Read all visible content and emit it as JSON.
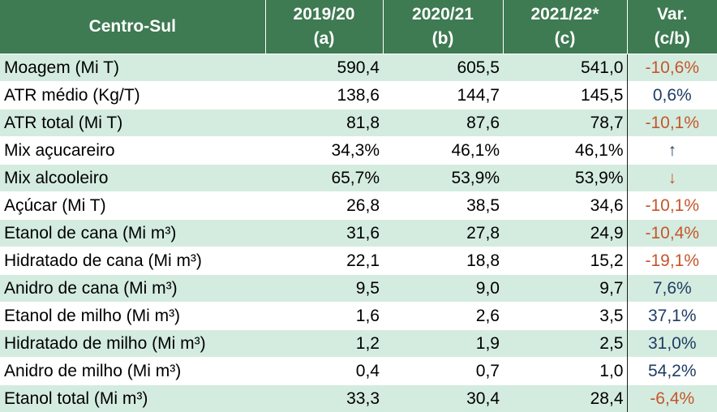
{
  "colors": {
    "header_bg": "#3e7a52",
    "header_text": "#ffffff",
    "band_row": "#d4ecdf",
    "plain_row": "#ffffff",
    "negative": "#c5562c",
    "positive": "#1f3d63"
  },
  "header": {
    "region": "Centro-Sul",
    "col1": [
      "2019/20",
      "(a)"
    ],
    "col2": [
      "2020/21",
      "(b)"
    ],
    "col3": [
      "2021/22*",
      "(c)"
    ],
    "col4": [
      "Var.",
      "(c/b)"
    ]
  },
  "rows": [
    {
      "label": "Moagem (Mi T)",
      "a": "590,4",
      "b": "605,5",
      "c": "541,0",
      "var": "-10,6%",
      "tone": "neg"
    },
    {
      "label": "ATR médio (Kg/T)",
      "a": "138,6",
      "b": "144,7",
      "c": "145,5",
      "var": "0,6%",
      "tone": "pos"
    },
    {
      "label": "ATR total (Mi T)",
      "a": "81,8",
      "b": "87,6",
      "c": "78,7",
      "var": "-10,1%",
      "tone": "neg"
    },
    {
      "label": "Mix açucareiro",
      "a": "34,3%",
      "b": "46,1%",
      "c": "46,1%",
      "var": "↑",
      "tone": "pos"
    },
    {
      "label": "Mix alcooleiro",
      "a": "65,7%",
      "b": "53,9%",
      "c": "53,9%",
      "var": "↓",
      "tone": "neg"
    },
    {
      "label": "Açúcar (Mi T)",
      "a": "26,8",
      "b": "38,5",
      "c": "34,6",
      "var": "-10,1%",
      "tone": "neg"
    },
    {
      "label": "Etanol de cana (Mi m³)",
      "a": "31,6",
      "b": "27,8",
      "c": "24,9",
      "var": "-10,4%",
      "tone": "neg"
    },
    {
      "label": "Hidratado de cana (Mi m³)",
      "a": "22,1",
      "b": "18,8",
      "c": "15,2",
      "var": "-19,1%",
      "tone": "neg"
    },
    {
      "label": "Anidro de cana (Mi m³)",
      "a": "9,5",
      "b": "9,0",
      "c": "9,7",
      "var": "7,6%",
      "tone": "pos"
    },
    {
      "label": "Etanol de milho (Mi m³)",
      "a": "1,6",
      "b": "2,6",
      "c": "3,5",
      "var": "37,1%",
      "tone": "pos"
    },
    {
      "label": "Hidratado de milho (Mi m³)",
      "a": "1,2",
      "b": "1,9",
      "c": "2,5",
      "var": "31,0%",
      "tone": "pos"
    },
    {
      "label": "Anidro de milho (Mi m³)",
      "a": "0,4",
      "b": "0,7",
      "c": "1,0",
      "var": "54,2%",
      "tone": "pos"
    },
    {
      "label": "Etanol total (Mi m³)",
      "a": "33,3",
      "b": "30,4",
      "c": "28,4",
      "var": "-6,4%",
      "tone": "neg"
    }
  ]
}
